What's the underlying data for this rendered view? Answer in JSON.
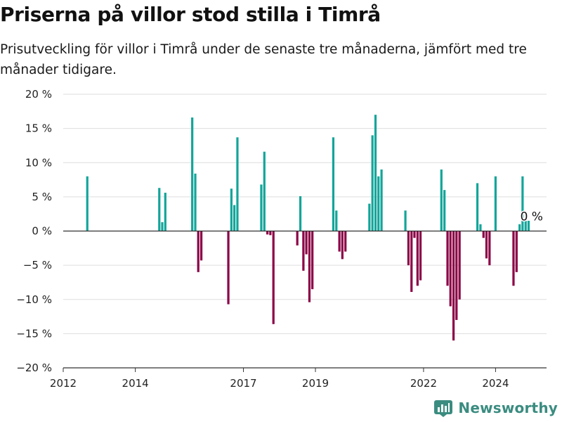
{
  "title": "Priserna på villor stod stilla i Timrå",
  "subtitle": "Prisutveckling för villor i Timrå under de senaste tre månaderna, jämfört med tre månader tidigare.",
  "brand": {
    "name": "Newsworthy",
    "color": "#3b8c80",
    "icon": "bar-chart-logo-icon"
  },
  "chart_data": {
    "type": "bar",
    "x_type": "date",
    "xlim": [
      "2012-01-01",
      "2025-06-01"
    ],
    "ylim": [
      -20,
      20
    ],
    "yticks": [
      20,
      15,
      10,
      5,
      0,
      -5,
      -10,
      -15,
      -20
    ],
    "ytick_labels": [
      "20 %",
      "15 %",
      "10 %",
      "5 %",
      "0 %",
      "−5 %",
      "−10 %",
      "−15 %",
      "−20 %"
    ],
    "xticks": [
      "2012-01-01",
      "2014-01-01",
      "2017-01-01",
      "2019-01-01",
      "2022-01-01",
      "2024-01-01"
    ],
    "xtick_labels": [
      "2012",
      "2014",
      "2017",
      "2019",
      "2022",
      "2024"
    ],
    "grid": true,
    "colors": {
      "positive": "#13a59a",
      "negative": "#8b0046",
      "grid": "#dddddd",
      "axis": "#333333"
    },
    "annotation": {
      "text": "0 %",
      "date": "2025-01-15",
      "value": 0
    },
    "data": [
      {
        "date": "2012-09-01",
        "value": 8.0
      },
      {
        "date": "2014-09-01",
        "value": 6.3
      },
      {
        "date": "2014-10-01",
        "value": 1.3
      },
      {
        "date": "2014-11-01",
        "value": 5.6
      },
      {
        "date": "2015-08-01",
        "value": 16.6
      },
      {
        "date": "2015-09-01",
        "value": 8.4
      },
      {
        "date": "2015-10-01",
        "value": -6.0
      },
      {
        "date": "2015-11-01",
        "value": -4.3
      },
      {
        "date": "2016-08-01",
        "value": -10.7
      },
      {
        "date": "2016-09-01",
        "value": 6.2
      },
      {
        "date": "2016-10-01",
        "value": 3.8
      },
      {
        "date": "2016-11-01",
        "value": 13.7
      },
      {
        "date": "2017-07-01",
        "value": 6.8
      },
      {
        "date": "2017-08-01",
        "value": 11.6
      },
      {
        "date": "2017-09-01",
        "value": -0.5
      },
      {
        "date": "2017-10-01",
        "value": -0.6
      },
      {
        "date": "2017-11-01",
        "value": -13.6
      },
      {
        "date": "2018-07-01",
        "value": -2.1
      },
      {
        "date": "2018-08-01",
        "value": 5.1
      },
      {
        "date": "2018-09-01",
        "value": -5.8
      },
      {
        "date": "2018-10-01",
        "value": -3.4
      },
      {
        "date": "2018-11-01",
        "value": -10.4
      },
      {
        "date": "2018-12-01",
        "value": -8.5
      },
      {
        "date": "2019-07-01",
        "value": 13.7
      },
      {
        "date": "2019-08-01",
        "value": 3.0
      },
      {
        "date": "2019-09-01",
        "value": -3.0
      },
      {
        "date": "2019-10-01",
        "value": -4.1
      },
      {
        "date": "2019-11-01",
        "value": -3.0
      },
      {
        "date": "2020-07-01",
        "value": 4.0
      },
      {
        "date": "2020-08-01",
        "value": 14.0
      },
      {
        "date": "2020-09-01",
        "value": 17.0
      },
      {
        "date": "2020-10-01",
        "value": 8.0
      },
      {
        "date": "2020-11-01",
        "value": 9.0
      },
      {
        "date": "2021-07-01",
        "value": 3.0
      },
      {
        "date": "2021-08-01",
        "value": -5.0
      },
      {
        "date": "2021-09-01",
        "value": -8.9
      },
      {
        "date": "2021-10-01",
        "value": -1.0
      },
      {
        "date": "2021-11-01",
        "value": -8.0
      },
      {
        "date": "2021-12-01",
        "value": -7.2
      },
      {
        "date": "2022-07-01",
        "value": 9.0
      },
      {
        "date": "2022-08-01",
        "value": 6.0
      },
      {
        "date": "2022-09-01",
        "value": -8.0
      },
      {
        "date": "2022-10-01",
        "value": -11.0
      },
      {
        "date": "2022-11-01",
        "value": -16.0
      },
      {
        "date": "2022-12-01",
        "value": -13.0
      },
      {
        "date": "2023-01-01",
        "value": -10.0
      },
      {
        "date": "2023-07-01",
        "value": 7.0
      },
      {
        "date": "2023-08-01",
        "value": 1.0
      },
      {
        "date": "2023-09-01",
        "value": -1.0
      },
      {
        "date": "2023-10-01",
        "value": -4.0
      },
      {
        "date": "2023-11-01",
        "value": -5.0
      },
      {
        "date": "2024-01-01",
        "value": 8.0
      },
      {
        "date": "2024-07-01",
        "value": -8.0
      },
      {
        "date": "2024-08-01",
        "value": -6.0
      },
      {
        "date": "2024-09-01",
        "value": 1.0
      },
      {
        "date": "2024-10-01",
        "value": 8.0
      },
      {
        "date": "2024-11-01",
        "value": 1.5
      },
      {
        "date": "2024-12-01",
        "value": 1.5
      }
    ]
  }
}
